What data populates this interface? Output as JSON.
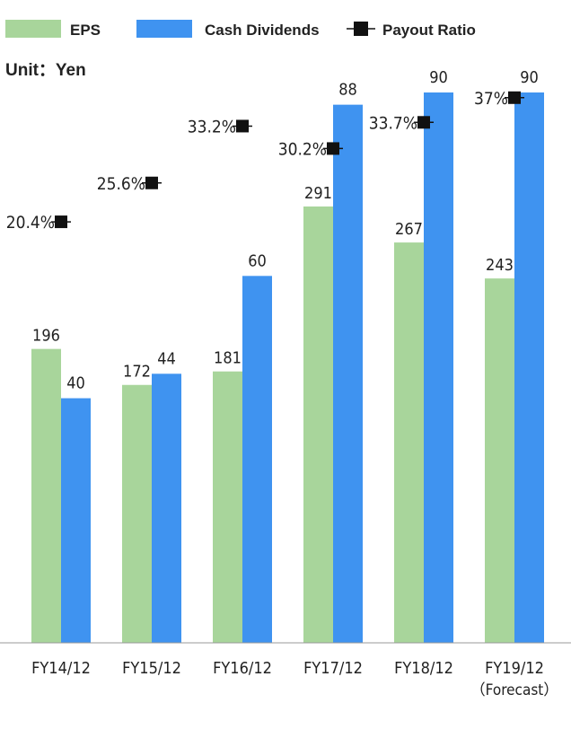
{
  "chart_data": {
    "type": "bar",
    "unit_label": "Unit：Yen",
    "categories": [
      "FY14/12",
      "FY15/12",
      "FY16/12",
      "FY17/12",
      "FY18/12",
      "FY19/12"
    ],
    "category_sublabels": [
      "",
      "",
      "",
      "",
      "",
      "（Forecast）"
    ],
    "series": [
      {
        "name": "EPS",
        "type": "bar",
        "color": "#a8d59b",
        "values": [
          196,
          172,
          181,
          291,
          267,
          243
        ]
      },
      {
        "name": "Cash Dividends",
        "type": "bar",
        "color": "#3f93f0",
        "values": [
          40,
          44,
          60,
          88,
          90,
          90
        ]
      },
      {
        "name": "Payout Ratio",
        "type": "line-marker",
        "color": "#111111",
        "values": [
          20.4,
          25.6,
          33.2,
          30.2,
          33.7,
          37
        ],
        "labels": [
          "20.4%",
          "25.6%",
          "33.2%",
          "30.2%",
          "33.7%",
          "37%"
        ]
      }
    ],
    "ylim": [
      0,
      300
    ],
    "legend_position": "top",
    "grid": false
  }
}
